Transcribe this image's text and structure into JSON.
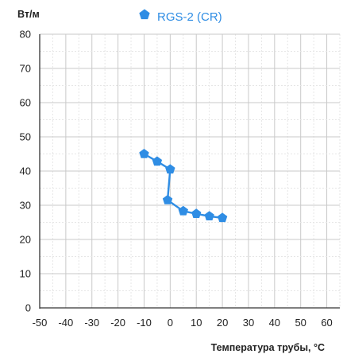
{
  "chart_data": {
    "type": "line",
    "title": "",
    "ylabel": "Вт/м",
    "xlabel": "Температура трубы, °С",
    "xlim": [
      -50,
      65
    ],
    "ylim": [
      0,
      80
    ],
    "x_ticks": [
      -50,
      -40,
      -30,
      -20,
      -10,
      0,
      10,
      20,
      30,
      40,
      50,
      60
    ],
    "y_ticks": [
      0,
      10,
      20,
      30,
      40,
      50,
      60,
      70,
      80
    ],
    "grid": true,
    "legend_position": "top-center",
    "series": [
      {
        "name": "RGS-2 (CR)",
        "color": "#2f8de4",
        "marker": "pentagon",
        "x": [
          -10,
          -5,
          0,
          -1,
          5,
          10,
          15,
          20
        ],
        "y": [
          45,
          42.8,
          40.5,
          31.5,
          28.3,
          27.5,
          26.8,
          26.3
        ]
      }
    ]
  }
}
